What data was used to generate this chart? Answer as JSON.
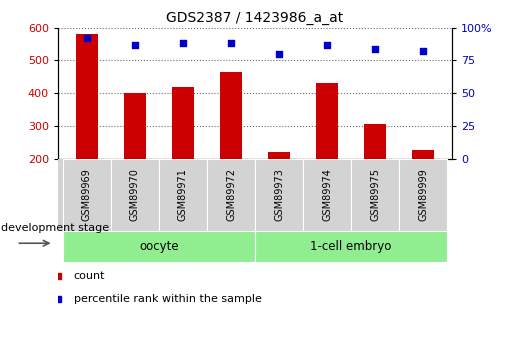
{
  "title": "GDS2387 / 1423986_a_at",
  "samples": [
    "GSM89969",
    "GSM89970",
    "GSM89971",
    "GSM89972",
    "GSM89973",
    "GSM89974",
    "GSM89975",
    "GSM89999"
  ],
  "counts": [
    580,
    400,
    418,
    465,
    220,
    430,
    305,
    228
  ],
  "percentiles": [
    92,
    87,
    88,
    88,
    80,
    87,
    84,
    82
  ],
  "bar_color": "#cc0000",
  "dot_color": "#0000cc",
  "ylim_left": [
    200,
    600
  ],
  "ylim_right": [
    0,
    100
  ],
  "yticks_left": [
    200,
    300,
    400,
    500,
    600
  ],
  "yticks_right": [
    0,
    25,
    50,
    75,
    100
  ],
  "legend_count_label": "count",
  "legend_pct_label": "percentile rank within the sample",
  "xlabel_label": "development stage",
  "group_label_oocyte": "oocyte",
  "group_label_1cell": "1-cell embryo",
  "tick_area_color": "#d3d3d3",
  "group_area_color": "#90ee90",
  "groups": [
    {
      "label": "oocyte",
      "start": 0,
      "end": 4
    },
    {
      "label": "1-cell embryo",
      "start": 4,
      "end": 8
    }
  ]
}
